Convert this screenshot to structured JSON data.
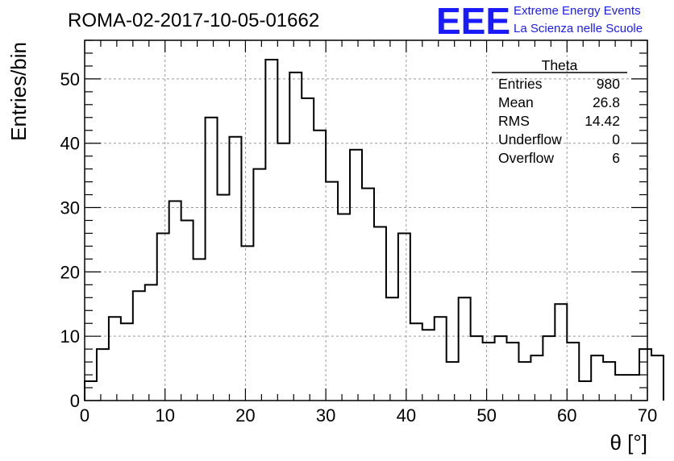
{
  "chart_data": {
    "type": "bar",
    "title": "ROMA-02-2017-10-05-01662",
    "xlabel": "θ [°]",
    "ylabel": "Entries/bin",
    "xlim": [
      0,
      70
    ],
    "ylim": [
      0,
      56
    ],
    "grid": true,
    "bin_width": 1.5,
    "bin_start": 0,
    "xticks": [
      0,
      10,
      20,
      30,
      40,
      50,
      60,
      70
    ],
    "yticks": [
      0,
      10,
      20,
      30,
      40,
      50
    ],
    "values": [
      3,
      8,
      13,
      12,
      17,
      18,
      26,
      31,
      28,
      22,
      44,
      32,
      41,
      24,
      36,
      53,
      40,
      51,
      47,
      42,
      34,
      29,
      39,
      33,
      27,
      16,
      26,
      12,
      11,
      13,
      6,
      16,
      10,
      9,
      10,
      9,
      6,
      7,
      10,
      15,
      9,
      3,
      7,
      6,
      4,
      4,
      8,
      7
    ],
    "stats": {
      "title": "Theta",
      "rows": [
        {
          "label": "Entries",
          "value": "980"
        },
        {
          "label": "Mean",
          "value": "26.8"
        },
        {
          "label": "RMS",
          "value": "14.42"
        },
        {
          "label": "Underflow",
          "value": "0"
        },
        {
          "label": "Overflow",
          "value": "6"
        }
      ]
    }
  },
  "logo": {
    "mark": "EEE",
    "line1": "Extreme Energy Events",
    "line2": "La Scienza nelle Scuole",
    "color": "#1a1aff"
  }
}
